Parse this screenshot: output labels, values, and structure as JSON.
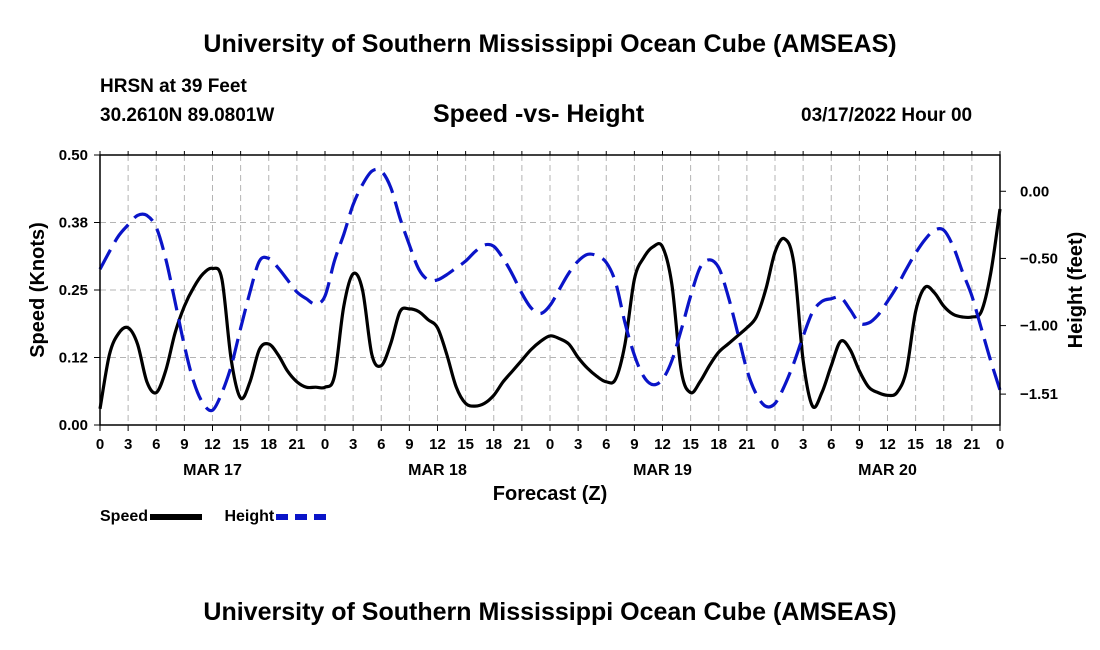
{
  "header": {
    "title": "University of Southern Mississippi Ocean Cube (AMSEAS)",
    "station": "HRSN at 39 Feet",
    "coords": "30.2610N  89.0801W",
    "chart_title": "Speed -vs- Height",
    "datetime": "03/17/2022 Hour 00"
  },
  "footer": {
    "title": "University of Southern Mississippi Ocean Cube (AMSEAS)"
  },
  "legend": {
    "speed_label": "Speed",
    "height_label": "Height"
  },
  "colors": {
    "speed": "#000000",
    "height": "#0a14c8",
    "grid": "#b4b4b4"
  },
  "chart_data": {
    "type": "line",
    "title": "Speed -vs- Height",
    "xlabel": "Forecast (Z)",
    "ylabel_left": "Speed (Knots)",
    "ylabel_right": "Height (feet)",
    "xlim": [
      0,
      96
    ],
    "ylim_left": [
      0,
      0.5
    ],
    "ylim_right": [
      -1.74,
      0.27
    ],
    "grid": true,
    "x_ticks": [
      0,
      3,
      6,
      9,
      12,
      15,
      18,
      21,
      24,
      27,
      30,
      33,
      36,
      39,
      42,
      45,
      48,
      51,
      54,
      57,
      60,
      63,
      66,
      69,
      72,
      75,
      78,
      81,
      84,
      87,
      90,
      93,
      96
    ],
    "x_tick_labels": [
      "0",
      "3",
      "6",
      "9",
      "12",
      "15",
      "18",
      "21",
      "0",
      "3",
      "6",
      "9",
      "12",
      "15",
      "18",
      "21",
      "0",
      "3",
      "6",
      "9",
      "12",
      "15",
      "18",
      "21",
      "0",
      "3",
      "6",
      "9",
      "12",
      "15",
      "18",
      "21",
      "0"
    ],
    "date_labels": [
      {
        "x": 12,
        "label": "MAR 17"
      },
      {
        "x": 36,
        "label": "MAR 18"
      },
      {
        "x": 60,
        "label": "MAR 19"
      },
      {
        "x": 84,
        "label": "MAR 20"
      }
    ],
    "left_ticks": [
      0.0,
      0.125,
      0.25,
      0.375,
      0.5
    ],
    "left_tick_labels": [
      "0.00",
      "0.12",
      "0.25",
      "0.38",
      "0.50"
    ],
    "right_ticks": [
      0.0,
      -0.5,
      -1.0,
      -1.51
    ],
    "right_tick_labels": [
      "0.00",
      "−0.50",
      "−1.00",
      "−1.51"
    ],
    "series": [
      {
        "name": "Speed",
        "axis": "left",
        "style": "solid",
        "x": [
          0,
          1,
          2,
          3,
          4,
          5,
          6,
          7,
          8,
          9,
          10,
          11,
          12,
          13,
          14,
          15,
          16,
          17,
          18,
          19,
          20,
          21,
          22,
          23,
          24,
          25,
          26,
          27,
          28,
          29,
          30,
          31,
          32,
          33,
          34,
          35,
          36,
          37,
          38,
          39,
          40,
          41,
          42,
          43,
          44,
          45,
          46,
          47,
          48,
          49,
          50,
          51,
          52,
          53,
          54,
          55,
          56,
          57,
          58,
          59,
          60,
          61,
          62,
          63,
          64,
          65,
          66,
          67,
          68,
          69,
          70,
          71,
          72,
          73,
          74,
          75,
          76,
          77,
          78,
          79,
          80,
          81,
          82,
          83,
          84,
          85,
          86,
          87,
          88,
          89,
          90,
          91,
          92,
          93,
          94,
          95,
          96
        ],
        "values": [
          0.03,
          0.13,
          0.17,
          0.18,
          0.15,
          0.08,
          0.06,
          0.1,
          0.17,
          0.22,
          0.255,
          0.28,
          0.29,
          0.27,
          0.12,
          0.05,
          0.08,
          0.14,
          0.15,
          0.13,
          0.1,
          0.08,
          0.07,
          0.07,
          0.07,
          0.09,
          0.22,
          0.28,
          0.25,
          0.13,
          0.11,
          0.15,
          0.21,
          0.215,
          0.21,
          0.195,
          0.18,
          0.13,
          0.07,
          0.04,
          0.035,
          0.04,
          0.055,
          0.08,
          0.1,
          0.12,
          0.14,
          0.155,
          0.165,
          0.16,
          0.15,
          0.125,
          0.105,
          0.09,
          0.08,
          0.085,
          0.15,
          0.27,
          0.31,
          0.33,
          0.33,
          0.26,
          0.1,
          0.06,
          0.08,
          0.11,
          0.135,
          0.15,
          0.165,
          0.18,
          0.2,
          0.25,
          0.32,
          0.345,
          0.3,
          0.12,
          0.035,
          0.06,
          0.11,
          0.155,
          0.14,
          0.1,
          0.07,
          0.06,
          0.055,
          0.06,
          0.1,
          0.21,
          0.255,
          0.245,
          0.22,
          0.205,
          0.2,
          0.2,
          0.21,
          0.28,
          0.4
        ]
      },
      {
        "name": "Height",
        "axis": "right",
        "style": "dashed",
        "x": [
          0,
          1,
          2,
          3,
          4,
          5,
          6,
          7,
          8,
          9,
          10,
          11,
          12,
          13,
          14,
          15,
          16,
          17,
          18,
          19,
          20,
          21,
          22,
          23,
          24,
          25,
          26,
          27,
          28,
          29,
          30,
          31,
          32,
          33,
          34,
          35,
          36,
          37,
          38,
          39,
          40,
          41,
          42,
          43,
          44,
          45,
          46,
          47,
          48,
          49,
          50,
          51,
          52,
          53,
          54,
          55,
          56,
          57,
          58,
          59,
          60,
          61,
          62,
          63,
          64,
          65,
          66,
          67,
          68,
          69,
          70,
          71,
          72,
          73,
          74,
          75,
          76,
          77,
          78,
          79,
          80,
          81,
          82,
          83,
          84,
          85,
          86,
          87,
          88,
          89,
          90,
          91,
          92,
          93,
          94,
          95,
          96
        ],
        "values": [
          -0.58,
          -0.45,
          -0.33,
          -0.25,
          -0.18,
          -0.18,
          -0.27,
          -0.5,
          -0.82,
          -1.15,
          -1.42,
          -1.58,
          -1.63,
          -1.5,
          -1.3,
          -1.02,
          -0.75,
          -0.52,
          -0.5,
          -0.57,
          -0.66,
          -0.75,
          -0.8,
          -0.84,
          -0.78,
          -0.52,
          -0.32,
          -0.1,
          0.05,
          0.15,
          0.15,
          0.03,
          -0.2,
          -0.4,
          -0.58,
          -0.66,
          -0.66,
          -0.62,
          -0.57,
          -0.52,
          -0.45,
          -0.4,
          -0.41,
          -0.5,
          -0.62,
          -0.76,
          -0.87,
          -0.91,
          -0.85,
          -0.73,
          -0.61,
          -0.52,
          -0.47,
          -0.48,
          -0.53,
          -0.68,
          -0.98,
          -1.22,
          -1.38,
          -1.44,
          -1.4,
          -1.26,
          -1.03,
          -0.78,
          -0.57,
          -0.51,
          -0.57,
          -0.78,
          -1.05,
          -1.33,
          -1.51,
          -1.6,
          -1.58,
          -1.45,
          -1.28,
          -1.08,
          -0.9,
          -0.82,
          -0.8,
          -0.79,
          -0.88,
          -0.98,
          -0.98,
          -0.92,
          -0.82,
          -0.71,
          -0.58,
          -0.46,
          -0.36,
          -0.29,
          -0.29,
          -0.41,
          -0.6,
          -0.78,
          -1.02,
          -1.26,
          -1.48
        ]
      }
    ]
  }
}
